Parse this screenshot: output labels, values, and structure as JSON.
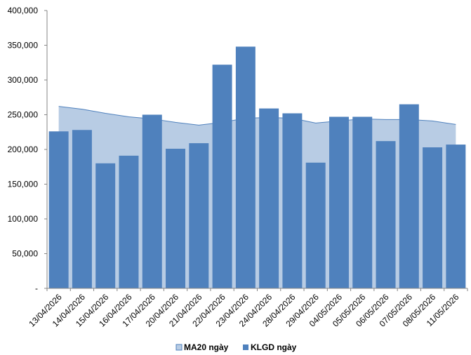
{
  "chart_data": {
    "type": "bar",
    "categories": [
      "13/04/2026",
      "14/04/2026",
      "15/04/2026",
      "16/04/2026",
      "17/04/2026",
      "20/04/2026",
      "21/04/2026",
      "22/04/2026",
      "23/04/2026",
      "24/04/2026",
      "28/04/2026",
      "29/04/2026",
      "04/05/2026",
      "05/05/2026",
      "06/05/2026",
      "07/05/2026",
      "08/05/2026",
      "11/05/2026"
    ],
    "series": [
      {
        "name": "MA20 ngày",
        "type": "area",
        "color": "#b8cce4",
        "values": [
          262000,
          258000,
          252000,
          247000,
          244000,
          239000,
          235000,
          239000,
          245000,
          246000,
          245000,
          238000,
          241000,
          244000,
          243000,
          243000,
          241000,
          236000
        ]
      },
      {
        "name": "KLGD ngày",
        "type": "bar",
        "color": "#4f81bd",
        "values": [
          226000,
          228000,
          180000,
          191000,
          250000,
          201000,
          209000,
          322000,
          348000,
          259000,
          252000,
          181000,
          247000,
          247000,
          212000,
          265000,
          203000,
          207000
        ]
      }
    ],
    "yticks": [
      "-",
      "50,000",
      "100,000",
      "150,000",
      "200,000",
      "250,000",
      "300,000",
      "350,000",
      "400,000"
    ],
    "ylim": [
      0,
      400000
    ],
    "ystep": 50000,
    "xlabel": "",
    "ylabel": "",
    "legend_position": "bottom",
    "grid": false
  }
}
